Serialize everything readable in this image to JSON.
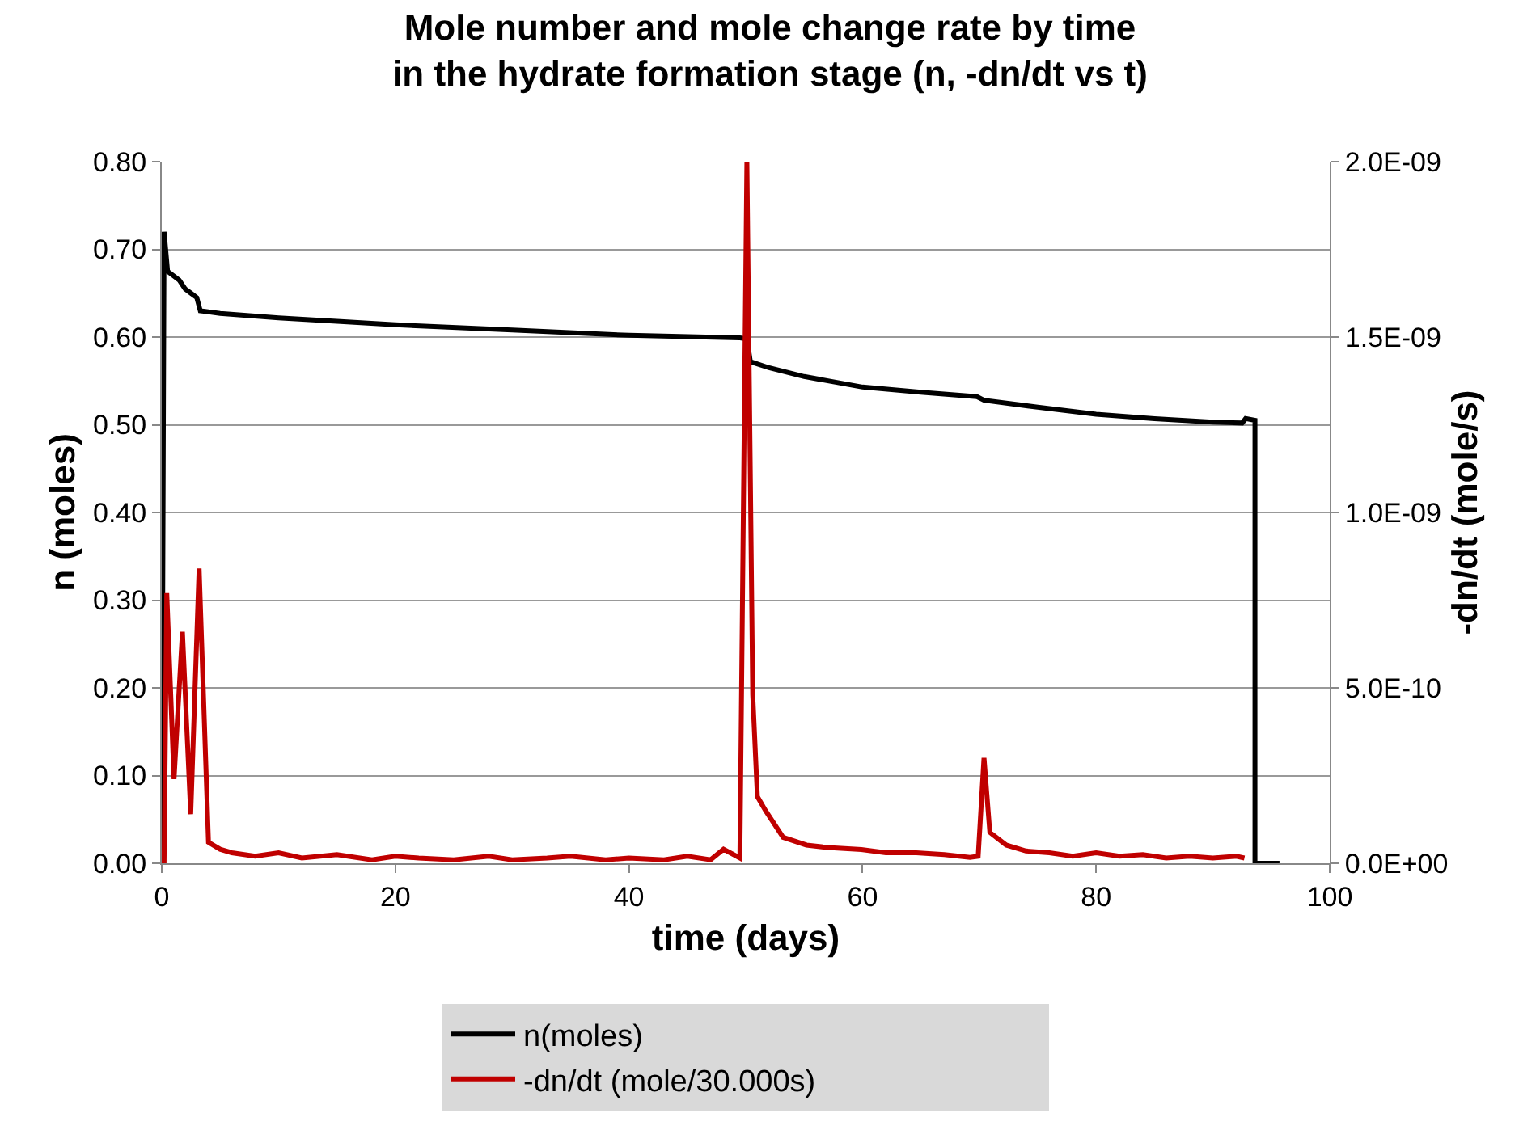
{
  "chart_data": {
    "type": "line",
    "title": "Mole number and mole change rate by time\nin the hydrate formation stage (n, -dn/dt vs t)",
    "xlabel": "time (days)",
    "ylabel": "n (moles)",
    "y2label": "-dn/dt (mole/s)",
    "xlim": [
      0,
      100
    ],
    "xticks": [
      0,
      20,
      40,
      60,
      80,
      100
    ],
    "ylim": [
      0,
      0.8
    ],
    "yticks": [
      {
        "value": 0,
        "label": "0.00"
      },
      {
        "value": 0.1,
        "label": "0.10"
      },
      {
        "value": 0.2,
        "label": "0.20"
      },
      {
        "value": 0.3,
        "label": "0.30"
      },
      {
        "value": 0.4,
        "label": "0.40"
      },
      {
        "value": 0.5,
        "label": "0.50"
      },
      {
        "value": 0.6,
        "label": "0.60"
      },
      {
        "value": 0.7,
        "label": "0.70"
      },
      {
        "value": 0.8,
        "label": "0.80"
      }
    ],
    "y2lim": [
      0,
      2e-09
    ],
    "y2ticks": [
      {
        "value": 0,
        "label": "0.0E+00"
      },
      {
        "value": 5e-10,
        "label": "5.0E-10"
      },
      {
        "value": 1e-09,
        "label": "1.0E-09"
      },
      {
        "value": 1.5e-09,
        "label": "1.5E-09"
      },
      {
        "value": 2e-09,
        "label": "2.0E-09"
      }
    ],
    "grid": "y",
    "legend": "bottom",
    "marker": "none",
    "line_style": "solid",
    "series": [
      {
        "name": "n(moles)",
        "color": "#000000",
        "x": [
          0,
          0.2,
          0.5,
          1,
          1.5,
          2,
          2.5,
          3,
          3.3,
          5,
          10,
          20,
          30,
          40,
          49.5,
          50.1,
          50.4,
          52,
          55,
          60,
          65,
          69.8,
          70.4,
          75,
          80,
          85,
          90,
          92.5,
          92.8,
          93.6,
          93.6,
          95.7
        ],
        "values": [
          0,
          0.72,
          0.675,
          0.67,
          0.665,
          0.655,
          0.65,
          0.645,
          0.63,
          0.627,
          0.622,
          0.614,
          0.608,
          0.602,
          0.599,
          0.598,
          0.572,
          0.565,
          0.555,
          0.543,
          0.537,
          0.532,
          0.528,
          0.52,
          0.512,
          0.507,
          0.503,
          0.502,
          0.507,
          0.505,
          0,
          0
        ]
      },
      {
        "name": "-dn/dt (mole/30.000s)",
        "color": "#c00000",
        "axis": "y2",
        "x": [
          0,
          0.2,
          0.43,
          1.05,
          1.77,
          2.48,
          3.2,
          4,
          5,
          6,
          8,
          10,
          12,
          15,
          18,
          20,
          22,
          25,
          28,
          30,
          33,
          35,
          38,
          40,
          43,
          45,
          47,
          48.1,
          49.5,
          50.1,
          50.6,
          51,
          51.7,
          53.2,
          55.2,
          57,
          59.9,
          62,
          64.6,
          67,
          69.2,
          69.9,
          70.4,
          70.9,
          72.3,
          74,
          76,
          78,
          80,
          82,
          84,
          86,
          88,
          90,
          92,
          92.7
        ],
        "values": [
          0,
          0,
          7.7e-10,
          2.4e-10,
          6.6e-10,
          1.4e-10,
          8.4e-10,
          6e-11,
          4e-11,
          3e-11,
          2e-11,
          3e-11,
          1.5e-11,
          2.5e-11,
          1e-11,
          2e-11,
          1.5e-11,
          1e-11,
          2e-11,
          1e-11,
          1.5e-11,
          2e-11,
          1e-11,
          1.5e-11,
          1e-11,
          2e-11,
          1e-11,
          4e-11,
          1.5e-11,
          2e-09,
          4.8e-10,
          1.9e-10,
          1.5e-10,
          7.4e-11,
          5.2e-11,
          4.5e-11,
          3.9e-11,
          3e-11,
          3e-11,
          2.5e-11,
          1.7e-11,
          2e-11,
          3e-10,
          8.8e-11,
          5.2e-11,
          3.5e-11,
          3e-11,
          2e-11,
          3e-11,
          2e-11,
          2.5e-11,
          1.5e-11,
          2e-11,
          1.5e-11,
          2e-11,
          1.5e-11
        ]
      }
    ]
  }
}
